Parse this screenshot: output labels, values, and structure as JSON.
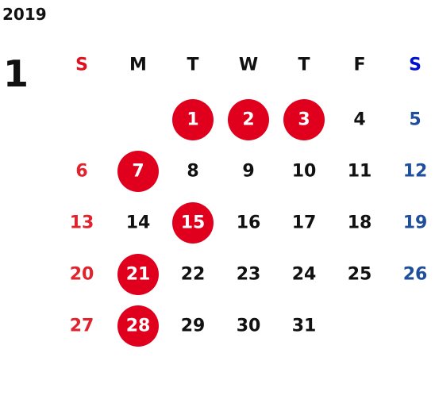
{
  "year": "2019",
  "month": "1",
  "weekdays": [
    "S",
    "M",
    "T",
    "W",
    "T",
    "F",
    "S"
  ],
  "weeks": [
    [
      null,
      null,
      {
        "day": 1,
        "holiday": true
      },
      {
        "day": 2,
        "holiday": true
      },
      {
        "day": 3,
        "holiday": true
      },
      {
        "day": 4
      },
      {
        "day": 5
      }
    ],
    [
      {
        "day": 6
      },
      {
        "day": 7,
        "holiday": true
      },
      {
        "day": 8
      },
      {
        "day": 9
      },
      {
        "day": 10
      },
      {
        "day": 11
      },
      {
        "day": 12
      }
    ],
    [
      {
        "day": 13
      },
      {
        "day": 14
      },
      {
        "day": 15,
        "holiday": true
      },
      {
        "day": 16
      },
      {
        "day": 17
      },
      {
        "day": 18
      },
      {
        "day": 19
      }
    ],
    [
      {
        "day": 20
      },
      {
        "day": 21,
        "holiday": true
      },
      {
        "day": 22
      },
      {
        "day": 23
      },
      {
        "day": 24
      },
      {
        "day": 25
      },
      {
        "day": 26
      }
    ],
    [
      {
        "day": 27
      },
      {
        "day": 28,
        "holiday": true
      },
      {
        "day": 29
      },
      {
        "day": 30
      },
      {
        "day": 31
      },
      null,
      null
    ]
  ]
}
